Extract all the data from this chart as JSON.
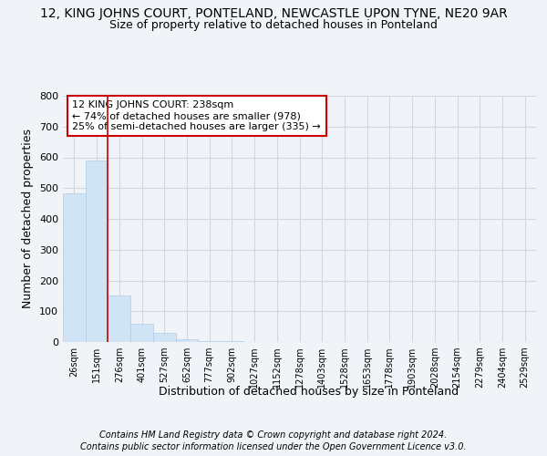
{
  "title_line1": "12, KING JOHNS COURT, PONTELAND, NEWCASTLE UPON TYNE, NE20 9AR",
  "title_line2": "Size of property relative to detached houses in Ponteland",
  "xlabel": "Distribution of detached houses by size in Ponteland",
  "ylabel": "Number of detached properties",
  "bar_labels": [
    "26sqm",
    "151sqm",
    "276sqm",
    "401sqm",
    "527sqm",
    "652sqm",
    "777sqm",
    "902sqm",
    "1027sqm",
    "1152sqm",
    "1278sqm",
    "1403sqm",
    "1528sqm",
    "1653sqm",
    "1778sqm",
    "1903sqm",
    "2028sqm",
    "2154sqm",
    "2279sqm",
    "2404sqm",
    "2529sqm"
  ],
  "bar_values": [
    484,
    591,
    152,
    60,
    30,
    8,
    3,
    2,
    1,
    0,
    0,
    0,
    0,
    0,
    0,
    0,
    0,
    0,
    0,
    0,
    0
  ],
  "bar_color": "#d0e4f5",
  "bar_edge_color": "#b0cce8",
  "vline_x": 1.5,
  "vline_color": "#cc0000",
  "annotation_text": "12 KING JOHNS COURT: 238sqm\n← 74% of detached houses are smaller (978)\n25% of semi-detached houses are larger (335) →",
  "annotation_box_color": "#ffffff",
  "annotation_box_edge": "#cc0000",
  "ylim": [
    0,
    800
  ],
  "yticks": [
    0,
    100,
    200,
    300,
    400,
    500,
    600,
    700,
    800
  ],
  "footer_line1": "Contains HM Land Registry data © Crown copyright and database right 2024.",
  "footer_line2": "Contains public sector information licensed under the Open Government Licence v3.0.",
  "bg_color": "#f0f4f8",
  "plot_bg_color": "#f0f4f8",
  "grid_color": "#d0d8e0",
  "title_fontsize": 10,
  "subtitle_fontsize": 9,
  "tick_fontsize": 7,
  "axis_label_fontsize": 9
}
